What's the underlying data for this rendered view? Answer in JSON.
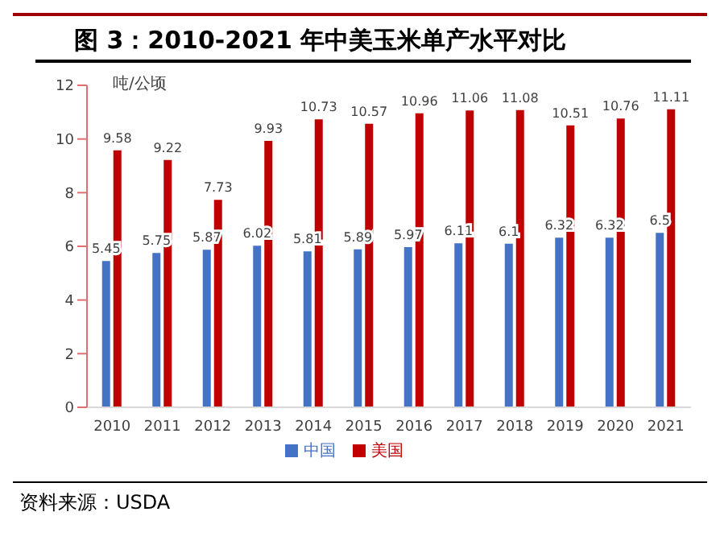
{
  "chart_data": {
    "type": "bar",
    "title": "图 3：2010-2021 年中美玉米单产水平对比",
    "ylabel": "吨/公顷",
    "annotations": [
      "资料来源：USDA"
    ],
    "categories": [
      "2010",
      "2011",
      "2012",
      "2013",
      "2014",
      "2015",
      "2016",
      "2017",
      "2018",
      "2019",
      "2020",
      "2021"
    ],
    "series": [
      {
        "name": "中国",
        "color": "#4472c4",
        "values": [
          5.45,
          5.75,
          5.87,
          6.02,
          5.81,
          5.89,
          5.97,
          6.11,
          6.1,
          6.32,
          6.32,
          6.5
        ]
      },
      {
        "name": "美国",
        "color": "#c00000",
        "values": [
          9.58,
          9.22,
          7.73,
          9.93,
          10.73,
          10.57,
          10.96,
          11.06,
          11.08,
          10.51,
          10.76,
          11.11
        ]
      }
    ],
    "ylim": [
      0,
      12
    ],
    "yticks": [
      0,
      2,
      4,
      6,
      8,
      10,
      12
    ],
    "grid": false,
    "legend": "bottom",
    "data_labels": true
  }
}
